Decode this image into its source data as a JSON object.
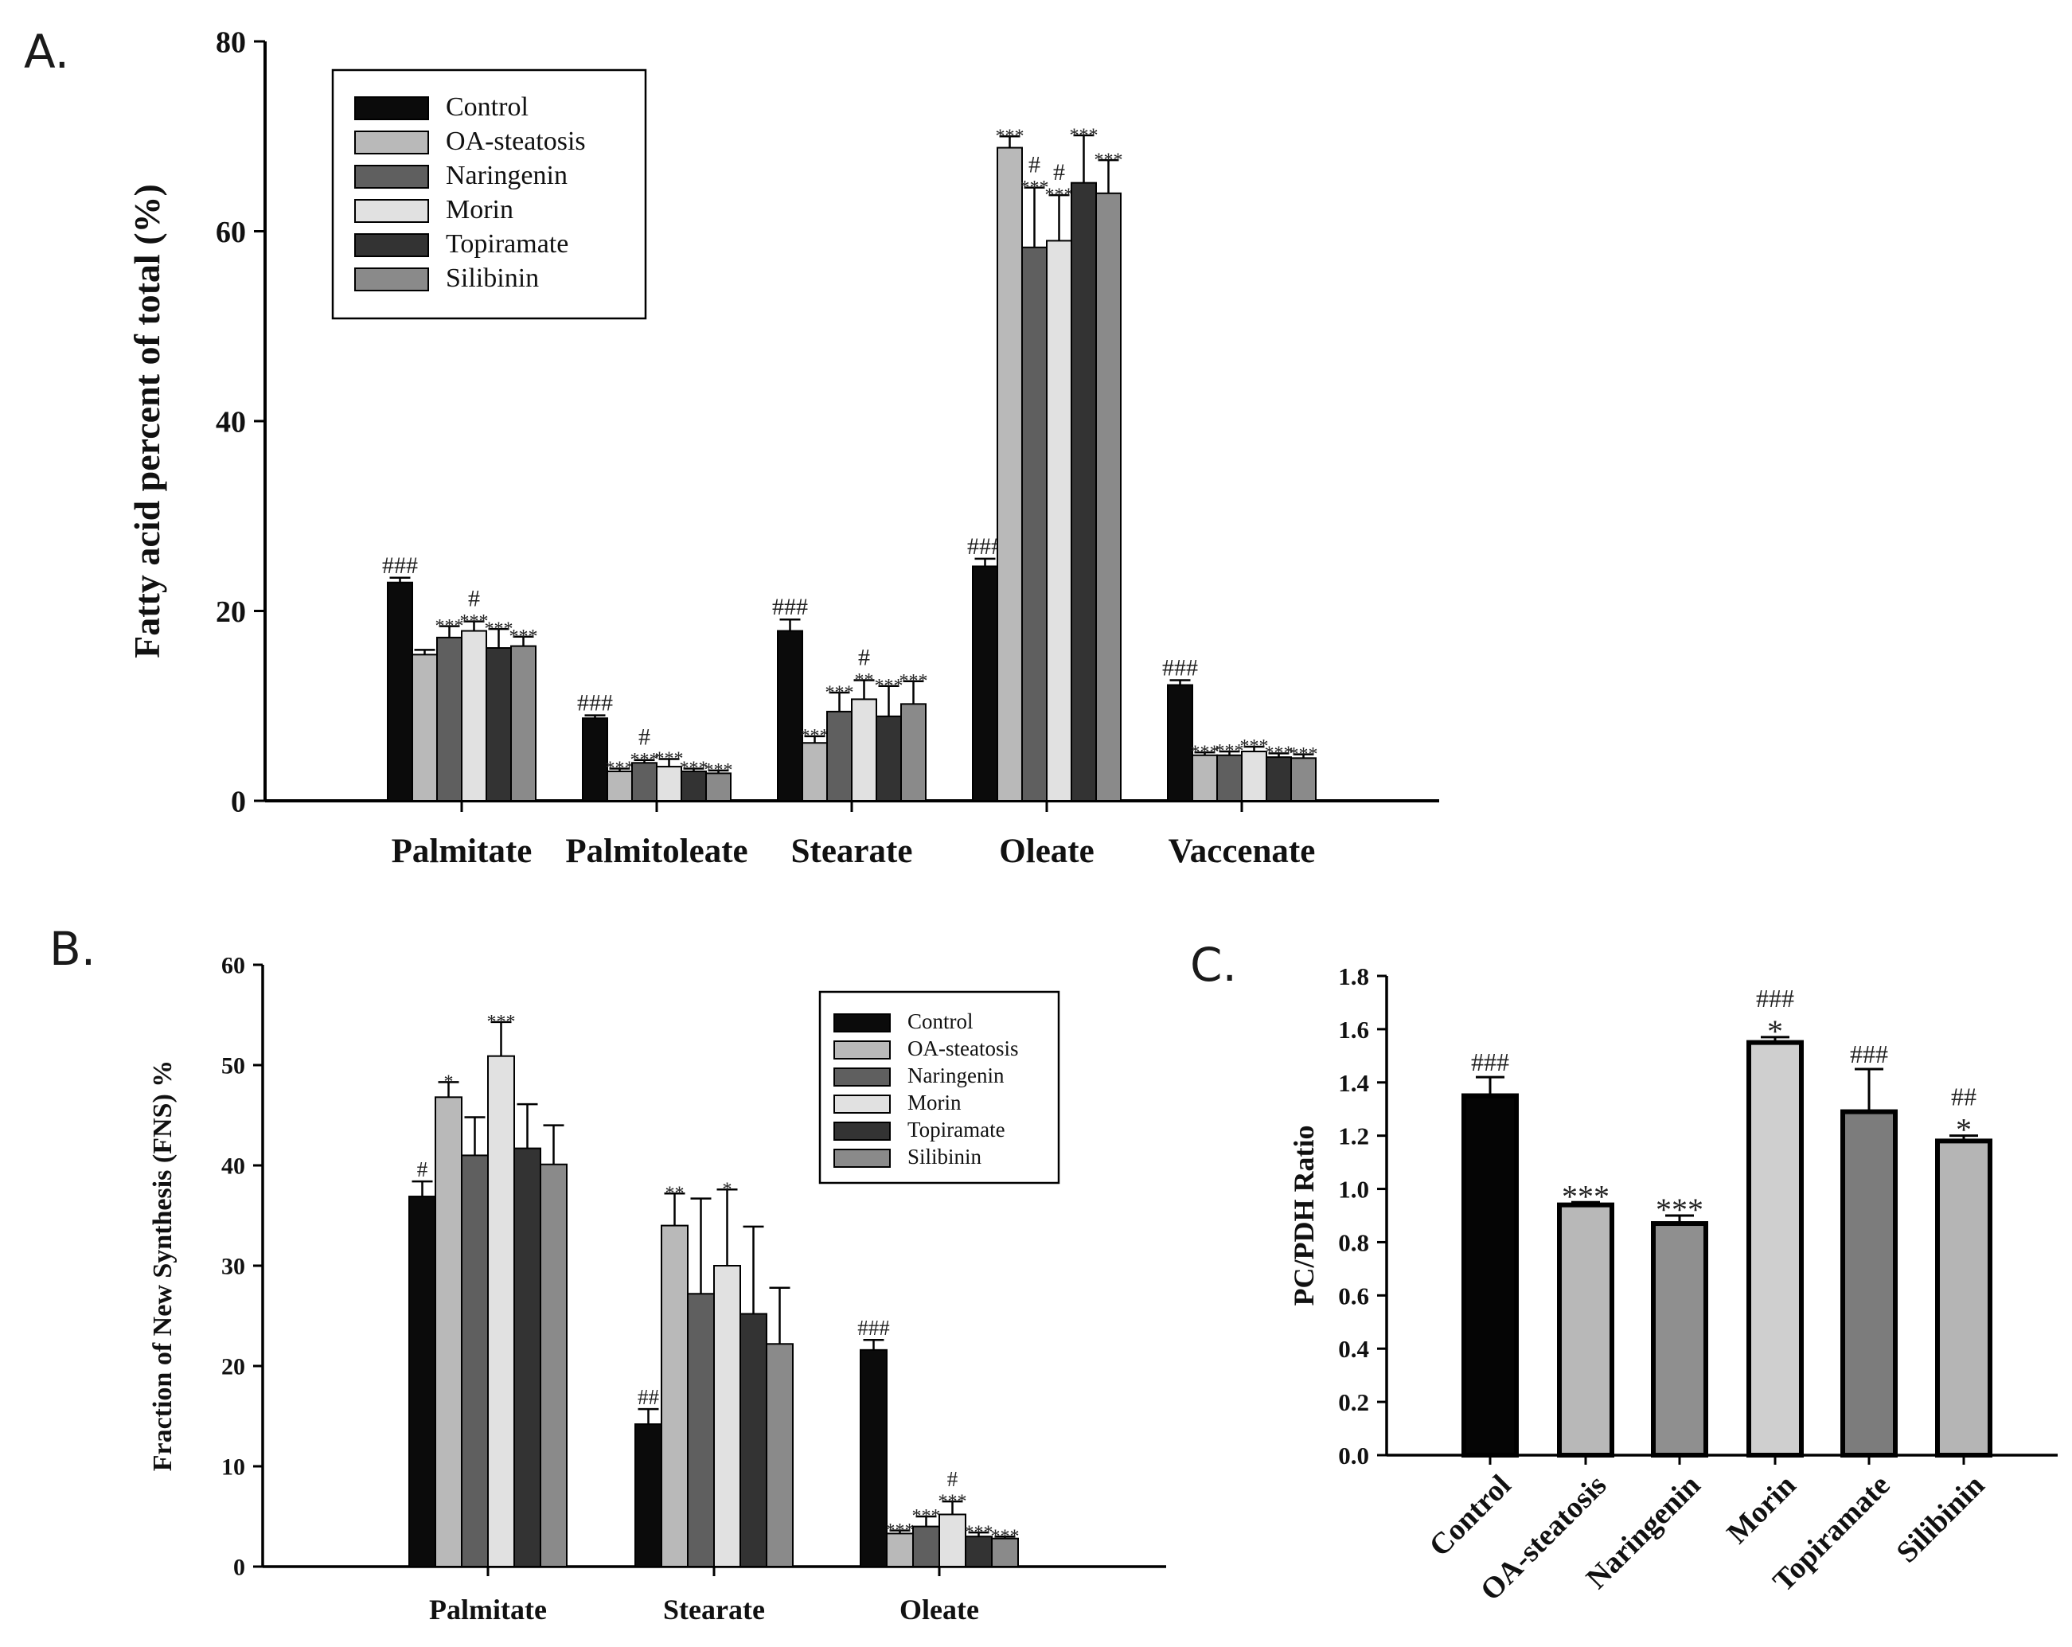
{
  "panels": {
    "A": {
      "letter": "A."
    },
    "B": {
      "letter": "B."
    },
    "C": {
      "letter": "C."
    }
  },
  "colors": {
    "Control": "#0b0b0b",
    "OA-steatosis": "#b9b9b9",
    "Naringenin": "#5f5f5f",
    "Morin": "#e1e1e1",
    "Topiramate": "#333333",
    "Silibinin": "#8a8a8a",
    "C_Control": "#050505",
    "C_OA-steatosis": "#b8b8b8",
    "C_Naringenin": "#8f8f8f",
    "C_Morin": "#cfcfcf",
    "C_Topiramate": "#7c7c7c",
    "C_Silibinin": "#b5b5b5"
  },
  "chart_data": [
    {
      "id": "A",
      "type": "bar",
      "title": "",
      "xlabel": "",
      "ylabel": "Fatty acid percent of total (%)",
      "ylim": [
        0,
        80
      ],
      "yticks": [
        0,
        20,
        40,
        60,
        80
      ],
      "legend_position": "top-left",
      "categories": [
        "Palmitate",
        "Palmitoleate",
        "Stearate",
        "Oleate",
        "Vaccenate"
      ],
      "series": [
        {
          "name": "Control",
          "values": [
            23.0,
            8.7,
            17.9,
            24.7,
            12.2
          ],
          "errors": [
            0.5,
            0.3,
            1.2,
            0.8,
            0.5
          ],
          "sig": [
            "###",
            "###",
            "###",
            "###",
            "###"
          ]
        },
        {
          "name": "OA-steatosis",
          "values": [
            15.4,
            3.1,
            6.1,
            68.8,
            4.8
          ],
          "errors": [
            0.5,
            0.3,
            0.7,
            1.2,
            0.3
          ],
          "sig": [
            "",
            "***",
            "***",
            "***",
            "***"
          ]
        },
        {
          "name": "Naringenin",
          "values": [
            17.2,
            4.0,
            9.4,
            58.3,
            4.8
          ],
          "errors": [
            1.2,
            0.3,
            2.0,
            6.3,
            0.4
          ],
          "sig": [
            "***",
            "#|***",
            "***",
            "#|***",
            "***"
          ]
        },
        {
          "name": "Morin",
          "values": [
            17.9,
            3.6,
            10.7,
            59.0,
            5.2
          ],
          "errors": [
            1.0,
            0.8,
            2.0,
            4.8,
            0.5
          ],
          "sig": [
            "#|***",
            "***",
            "#|**",
            "#|***",
            "***"
          ]
        },
        {
          "name": "Topiramate",
          "values": [
            16.1,
            3.1,
            8.9,
            65.1,
            4.6
          ],
          "errors": [
            2.0,
            0.3,
            3.2,
            5.0,
            0.4
          ],
          "sig": [
            "***",
            "***",
            "***",
            "***",
            "***"
          ]
        },
        {
          "name": "Silibinin",
          "values": [
            16.3,
            2.9,
            10.2,
            64.0,
            4.5
          ],
          "errors": [
            1.0,
            0.3,
            2.4,
            3.5,
            0.4
          ],
          "sig": [
            "***",
            "***",
            "***",
            "***",
            "***"
          ]
        }
      ]
    },
    {
      "id": "B",
      "type": "bar",
      "title": "",
      "xlabel": "",
      "ylabel": "Fraction of New Synthesis (FNS) %",
      "ylim": [
        0,
        60
      ],
      "yticks": [
        0,
        10,
        20,
        30,
        40,
        50,
        60
      ],
      "legend_position": "top-right",
      "categories": [
        "Palmitate",
        "Stearate",
        "Oleate"
      ],
      "series": [
        {
          "name": "Control",
          "values": [
            36.9,
            14.2,
            21.6
          ],
          "errors": [
            1.5,
            1.5,
            1.0
          ],
          "sig": [
            "#",
            "##",
            "###"
          ]
        },
        {
          "name": "OA-steatosis",
          "values": [
            46.8,
            34.0,
            3.3
          ],
          "errors": [
            1.5,
            3.2,
            0.3
          ],
          "sig": [
            "*",
            "**",
            "***"
          ]
        },
        {
          "name": "Naringenin",
          "values": [
            41.0,
            27.2,
            4.0
          ],
          "errors": [
            3.8,
            9.5,
            1.0
          ],
          "sig": [
            "",
            "",
            "***"
          ]
        },
        {
          "name": "Morin",
          "values": [
            50.9,
            30.0,
            5.2
          ],
          "errors": [
            3.4,
            7.6,
            1.3
          ],
          "sig": [
            "***",
            "*",
            "#|***"
          ]
        },
        {
          "name": "Topiramate",
          "values": [
            41.7,
            25.2,
            3.0
          ],
          "errors": [
            4.4,
            8.7,
            0.4
          ],
          "sig": [
            "",
            "",
            "***"
          ]
        },
        {
          "name": "Silibinin",
          "values": [
            40.1,
            22.2,
            2.8
          ],
          "errors": [
            3.9,
            5.6,
            0.2
          ],
          "sig": [
            "",
            "",
            "***"
          ]
        }
      ]
    },
    {
      "id": "C",
      "type": "bar",
      "title": "",
      "xlabel": "",
      "ylabel": "PC/PDH Ratio",
      "ylim": [
        0,
        1.8
      ],
      "yticks": [
        "0.0",
        "0.2",
        "0.4",
        "0.6",
        "0.8",
        "1.0",
        "1.2",
        "1.4",
        "1.6",
        "1.8"
      ],
      "categories": [
        "Control",
        "OA-steatosis",
        "Naringenin",
        "Morin",
        "Topiramate",
        "Silibinin"
      ],
      "values": [
        1.35,
        0.94,
        0.87,
        1.55,
        1.29,
        1.18
      ],
      "errors": [
        0.07,
        0.01,
        0.03,
        0.02,
        0.16,
        0.02
      ],
      "sig_hash": [
        "###",
        "",
        "",
        "###",
        "###",
        "##"
      ],
      "sig_star": [
        "",
        "***",
        "***",
        "*",
        "",
        "*"
      ]
    }
  ]
}
